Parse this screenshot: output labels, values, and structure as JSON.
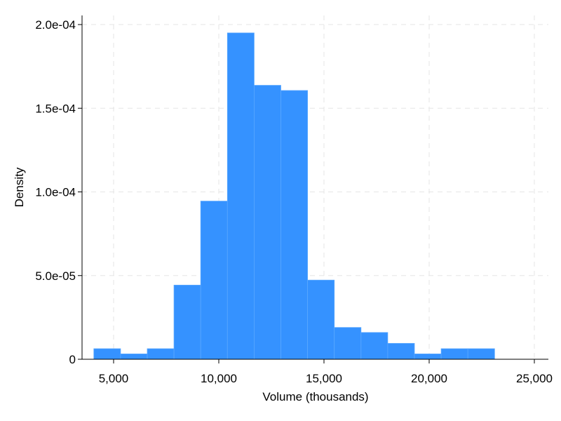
{
  "chart_data": {
    "type": "histogram",
    "xlabel": "Volume (thousands)",
    "ylabel": "Density",
    "xlim": [
      3500,
      25000
    ],
    "ylim": [
      0,
      0.0002
    ],
    "x_ticks": [
      5000,
      10000,
      15000,
      20000,
      25000
    ],
    "x_tick_labels": [
      "5,000",
      "10,000",
      "15,000",
      "20,000",
      "25,000"
    ],
    "y_ticks": [
      0,
      5e-05,
      0.0001,
      0.00015,
      0.0002
    ],
    "y_tick_labels": [
      "0",
      "5.0e-05",
      "1.0e-04",
      "1.5e-04",
      "2.0e-04"
    ],
    "grid": true,
    "bar_color": "#3592FF",
    "bins": [
      {
        "x0": 4060,
        "x1": 5330,
        "density": 6.3e-06
      },
      {
        "x0": 5330,
        "x1": 6600,
        "density": 3.2e-06
      },
      {
        "x0": 6600,
        "x1": 7870,
        "density": 6.3e-06
      },
      {
        "x0": 7870,
        "x1": 9140,
        "density": 4.43e-05
      },
      {
        "x0": 9140,
        "x1": 10410,
        "density": 9.45e-05
      },
      {
        "x0": 10410,
        "x1": 11680,
        "density": 0.000195
      },
      {
        "x0": 11680,
        "x1": 12950,
        "density": 0.0001637
      },
      {
        "x0": 12950,
        "x1": 14220,
        "density": 0.0001606
      },
      {
        "x0": 14220,
        "x1": 15490,
        "density": 4.73e-05
      },
      {
        "x0": 15490,
        "x1": 16760,
        "density": 1.9e-05
      },
      {
        "x0": 16760,
        "x1": 18030,
        "density": 1.6e-05
      },
      {
        "x0": 18030,
        "x1": 19300,
        "density": 9.5e-06
      },
      {
        "x0": 19300,
        "x1": 20570,
        "density": 3.2e-06
      },
      {
        "x0": 20570,
        "x1": 21840,
        "density": 6.3e-06
      },
      {
        "x0": 21840,
        "x1": 23110,
        "density": 6.3e-06
      }
    ]
  }
}
